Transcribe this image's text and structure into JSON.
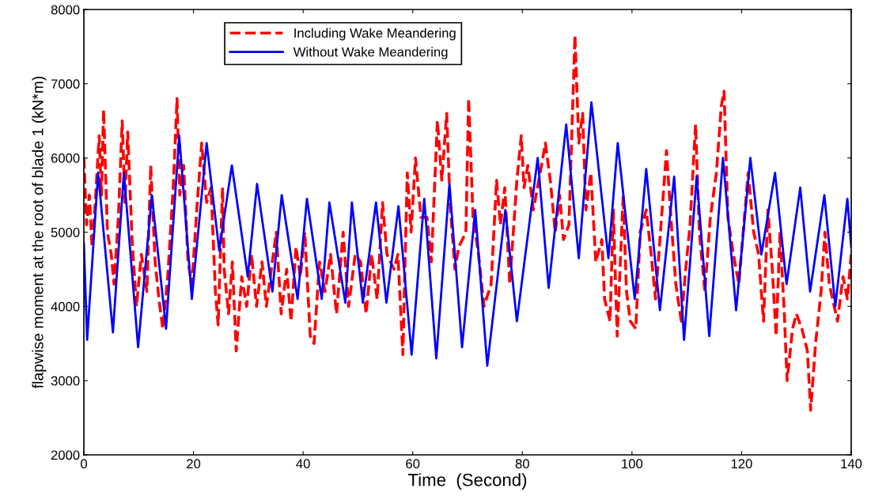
{
  "chart_data": {
    "type": "line",
    "xlabel": "Time  (Second)",
    "ylabel": "flapwise moment at the root of blade 1 (kN*m)",
    "xlim": [
      0,
      140
    ],
    "ylim": [
      2000,
      8000
    ],
    "xticks": [
      0,
      20,
      40,
      60,
      80,
      100,
      120,
      140
    ],
    "yticks": [
      2000,
      3000,
      4000,
      5000,
      6000,
      7000,
      8000
    ],
    "grid": false,
    "legend": "top",
    "marker": "none",
    "series": [
      {
        "name": "Including Wake Meandering",
        "color": "#ff0000",
        "line_style": "dashed",
        "x": [
          0,
          0.5,
          1,
          1.5,
          2,
          2.8,
          3.2,
          3.6,
          4.3,
          5,
          5.5,
          6.3,
          7,
          7.5,
          8,
          8.8,
          9.6,
          10.5,
          11.5,
          12.2,
          13,
          13.7,
          14.4,
          15.3,
          16.3,
          17,
          17.5,
          18.2,
          19,
          19.7,
          20.7,
          21.5,
          22.4,
          23.2,
          24,
          24.5,
          25.3,
          25.6,
          26.4,
          27.1,
          27.8,
          28.8,
          29.7,
          30.6,
          31.5,
          32.5,
          33.3,
          34.2,
          35.1,
          36,
          37,
          37.8,
          38.7,
          39.5,
          40.3,
          41.3,
          42,
          43,
          44,
          45,
          46.1,
          47.3,
          48.3,
          49.5,
          50.5,
          51.5,
          52.5,
          53.5,
          54.5,
          55.3,
          56.6,
          57.3,
          58.2,
          59,
          59.7,
          60.5,
          61.5,
          62.6,
          63.4,
          64.5,
          65.3,
          66.2,
          66.8,
          67.7,
          68.4,
          69.7,
          70.2,
          71,
          72,
          73,
          74.3,
          75.3,
          76,
          76.8,
          77.7,
          79,
          79.8,
          80.3,
          81,
          82,
          83.5,
          84.2,
          85.1,
          86,
          86.8,
          87.5,
          88.5,
          89.6,
          90.3,
          91,
          91.6,
          92.5,
          93.4,
          94.5,
          95,
          96,
          96.6,
          97.3,
          98.4,
          99,
          99.7,
          100.7,
          101.5,
          102.6,
          103.5,
          104.3,
          105.3,
          106.3,
          107,
          108,
          109,
          109.8,
          110.6,
          111.6,
          112.3,
          113.3,
          114.3,
          115.4,
          116.3,
          116.8,
          117.5,
          118.5,
          119.5,
          120.4,
          121.2,
          122.2,
          123.1,
          124,
          124.8,
          125.6,
          126.3,
          127,
          127.8,
          128.3,
          129.3,
          130,
          131,
          132,
          132.6,
          133.5,
          134.5,
          135.2,
          136,
          136.6,
          137.5,
          138.5,
          139.3,
          140
        ],
        "values": [
          6000,
          5100,
          5500,
          4800,
          5300,
          6300,
          5500,
          6650,
          5000,
          4700,
          4300,
          5200,
          6500,
          5400,
          6350,
          4900,
          4000,
          4700,
          4200,
          5900,
          4600,
          4100,
          3700,
          4400,
          5600,
          6800,
          5500,
          5900,
          4600,
          4300,
          5400,
          6200,
          5400,
          5600,
          4200,
          3750,
          5600,
          4500,
          3900,
          4600,
          3400,
          4400,
          4000,
          4700,
          4000,
          4600,
          4000,
          4500,
          5000,
          3900,
          4500,
          3800,
          4800,
          4400,
          5000,
          3600,
          3500,
          4600,
          4200,
          4700,
          3900,
          5000,
          4000,
          4700,
          4600,
          3900,
          4700,
          4100,
          5400,
          4700,
          4500,
          4700,
          3350,
          5800,
          5000,
          6000,
          5200,
          5200,
          4600,
          6500,
          5700,
          6600,
          5400,
          4500,
          4800,
          5000,
          6800,
          5200,
          4700,
          4000,
          4300,
          5700,
          5100,
          5600,
          4300,
          5700,
          6300,
          5600,
          5900,
          5300,
          5900,
          6200,
          5700,
          5000,
          5500,
          4900,
          5100,
          7650,
          6200,
          6600,
          5300,
          5800,
          4600,
          4900,
          4100,
          3800,
          5300,
          3600,
          5500,
          4200,
          3800,
          3700,
          5000,
          5300,
          4700,
          4100,
          5100,
          6100,
          5300,
          4300,
          3800,
          4500,
          5100,
          6450,
          5000,
          4200,
          5200,
          5800,
          6700,
          6900,
          5200,
          4700,
          4300,
          5100,
          5800,
          5000,
          4700,
          3800,
          5300,
          4500,
          3600,
          5000,
          3900,
          3000,
          3700,
          3900,
          3700,
          3400,
          2600,
          3500,
          4200,
          5000,
          4300,
          4100,
          3800,
          4400,
          4100,
          4700
        ]
      },
      {
        "name": "Without Wake Meandering",
        "color": "#0000ff",
        "line_style": "solid",
        "x": [
          0,
          0.6,
          2.6,
          5.3,
          7.3,
          9.9,
          12.4,
          15,
          17.4,
          19.7,
          22.4,
          24.7,
          27,
          29.9,
          31.6,
          34.4,
          36.1,
          39,
          40.7,
          43.4,
          44.8,
          47.7,
          48.9,
          50.9,
          53.3,
          55.2,
          57.4,
          59.8,
          62.1,
          64.3,
          66.7,
          69,
          71.4,
          73.6,
          76.9,
          79,
          82.8,
          84.8,
          88,
          90.3,
          92.6,
          95.7,
          97.4,
          100.5,
          102.6,
          105.1,
          107.7,
          109.5,
          111.8,
          114.1,
          116.6,
          119,
          121.6,
          123.6,
          126.1,
          128.2,
          130.7,
          132.5,
          135.1,
          137.1,
          139.3,
          140
        ],
        "values": [
          4850,
          3550,
          5800,
          3650,
          5800,
          3450,
          5500,
          3700,
          6300,
          4100,
          6200,
          4750,
          5900,
          4400,
          5650,
          4200,
          5500,
          4100,
          5450,
          4100,
          5400,
          4050,
          5400,
          4050,
          5400,
          4050,
          5350,
          3350,
          5450,
          3300,
          5650,
          3450,
          5300,
          3200,
          5300,
          3800,
          6000,
          4250,
          6450,
          4650,
          6750,
          4650,
          6200,
          4100,
          5850,
          3950,
          5750,
          3550,
          5750,
          3600,
          6000,
          3950,
          6000,
          4700,
          5800,
          4300,
          5600,
          4200,
          5500,
          4000,
          5450,
          4800
        ]
      }
    ]
  }
}
